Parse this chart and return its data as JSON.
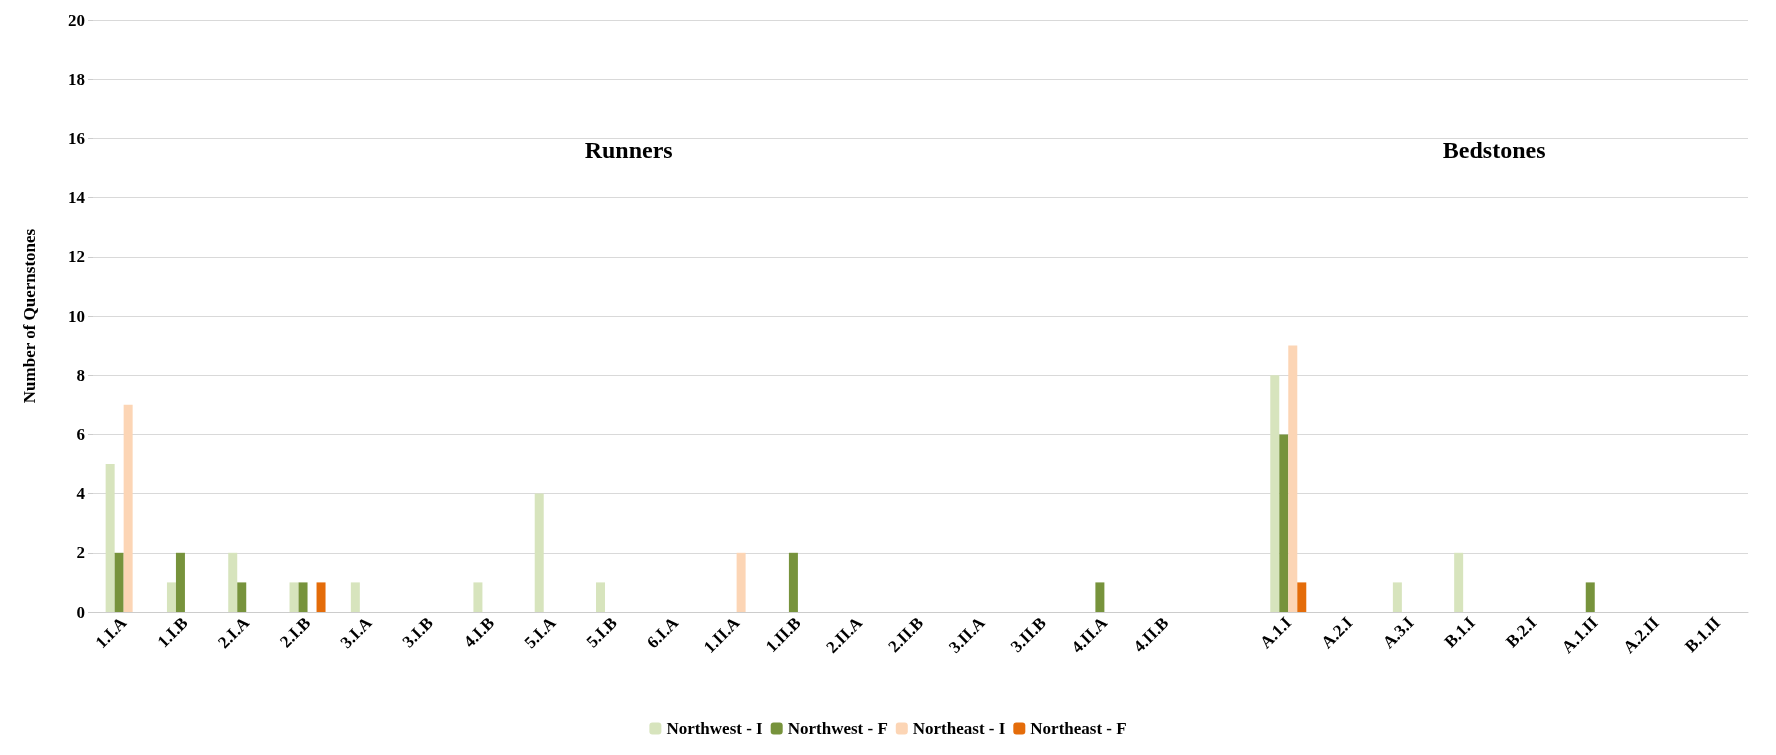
{
  "chart_data": {
    "type": "bar",
    "ylabel": "Number of Quernstones",
    "categories": [
      "1.I.A",
      "1.I.B",
      "2.I.A",
      "2.I.B",
      "3.I.A",
      "3.I.B",
      "4.I.B",
      "5.I.A",
      "5.I.B",
      "6.I.A",
      "1.II.A",
      "1.II.B",
      "2.II.A",
      "2.II.B",
      "3.II.A",
      "3.II.B",
      "4.II.A",
      "4.II.B",
      null,
      "A.1.I",
      "A.2.I",
      "A.3.I",
      "B.1.I",
      "B.2.I",
      "A.1.II",
      "A.2.II",
      "B.1.II"
    ],
    "series": [
      {
        "name": "Northwest - I",
        "color": "#d7e4bd",
        "values": [
          5,
          1,
          2,
          1,
          1,
          0,
          1,
          4,
          1,
          0,
          0,
          0,
          0,
          0,
          0,
          0,
          0,
          0,
          null,
          8,
          0,
          1,
          2,
          0,
          0,
          0,
          0
        ]
      },
      {
        "name": "Northwest - F",
        "color": "#77933c",
        "values": [
          2,
          2,
          1,
          1,
          0,
          0,
          0,
          0,
          0,
          0,
          0,
          2,
          0,
          0,
          0,
          0,
          1,
          0,
          null,
          6,
          0,
          0,
          0,
          0,
          1,
          0,
          0
        ]
      },
      {
        "name": "Northeast - I",
        "color": "#fcd5b5",
        "values": [
          7,
          0,
          0,
          0,
          0,
          0,
          0,
          0,
          0,
          0,
          2,
          0,
          0,
          0,
          0,
          0,
          0,
          0,
          null,
          9,
          0,
          0,
          0,
          0,
          0,
          0,
          0
        ]
      },
      {
        "name": "Northeast - F",
        "color": "#e46c0a",
        "values": [
          0,
          0,
          0,
          1,
          0,
          0,
          0,
          0,
          0,
          0,
          0,
          0,
          0,
          0,
          0,
          0,
          0,
          0,
          null,
          1,
          0,
          0,
          0,
          0,
          0,
          0,
          0
        ]
      }
    ],
    "ylim": [
      0,
      20
    ],
    "yticks": [
      0,
      2,
      4,
      6,
      8,
      10,
      12,
      14,
      16,
      18,
      20
    ],
    "grid": "y",
    "legend": "bottom",
    "annotations": [
      "Runners",
      "Bedstones"
    ]
  }
}
